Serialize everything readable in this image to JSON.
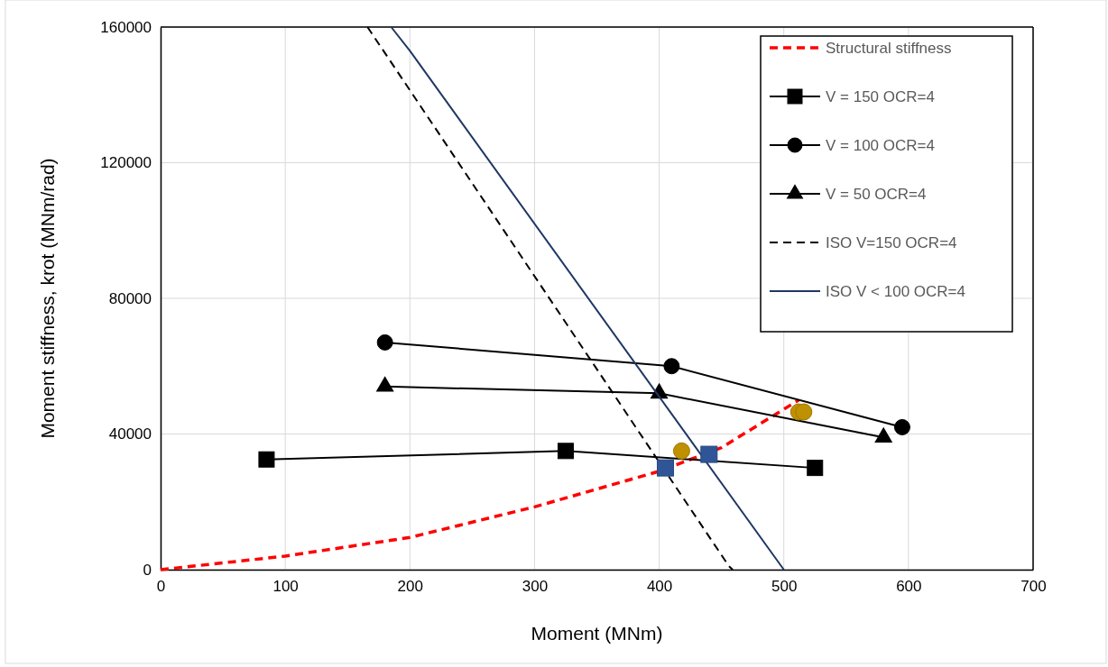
{
  "chart_data": {
    "type": "line",
    "xlabel": "Moment (MNm)",
    "ylabel": "Moment stiffness, krot (MNm/rad)",
    "xlim": [
      0,
      700
    ],
    "ylim": [
      0,
      160000
    ],
    "xticks": [
      0,
      100,
      200,
      300,
      400,
      500,
      600,
      700
    ],
    "yticks": [
      0,
      40000,
      80000,
      120000,
      160000
    ],
    "grid": true,
    "legend": "top right",
    "series": [
      {
        "name": "Structural stiffness",
        "type": "line",
        "color": "#ff0000",
        "line_style": "dashed",
        "marker": "none",
        "x": [
          0,
          100,
          200,
          300,
          400,
          450,
          512
        ],
        "values": [
          0,
          4000,
          9500,
          18500,
          29000,
          36000,
          50000
        ]
      },
      {
        "name": "V = 150 OCR=4",
        "type": "line",
        "color": "#000000",
        "line_style": "solid",
        "marker": "square",
        "x": [
          85,
          325,
          525
        ],
        "values": [
          32500,
          35000,
          30000
        ]
      },
      {
        "name": "V = 100 OCR=4",
        "type": "line",
        "color": "#000000",
        "line_style": "solid",
        "marker": "circle",
        "x": [
          180,
          410,
          595
        ],
        "values": [
          67000,
          60000,
          42000
        ]
      },
      {
        "name": "V = 50 OCR=4",
        "type": "line",
        "color": "#000000",
        "line_style": "solid",
        "marker": "triangle",
        "x": [
          180,
          400,
          580
        ],
        "values": [
          54000,
          52000,
          39000
        ]
      },
      {
        "name": "ISO V=150 OCR=4",
        "type": "line",
        "color": "#000000",
        "line_style": "dashed",
        "marker": "none",
        "x": [
          166,
          456,
          459
        ],
        "values": [
          160000,
          1000,
          0
        ]
      },
      {
        "name": "ISO V < 100 OCR=4",
        "type": "line",
        "color": "#203864",
        "line_style": "solid",
        "marker": "none",
        "x": [
          185,
          200,
          500
        ],
        "values": [
          160000,
          153000,
          0
        ]
      },
      {
        "type": "scatter",
        "color": "#bf9000",
        "marker": "circle",
        "x": [
          418,
          512,
          516
        ],
        "values": [
          35000,
          46500,
          46500
        ]
      },
      {
        "type": "scatter",
        "color": "#2f5597",
        "marker": "square",
        "x": [
          405,
          440
        ],
        "values": [
          30000,
          34000
        ]
      }
    ]
  }
}
